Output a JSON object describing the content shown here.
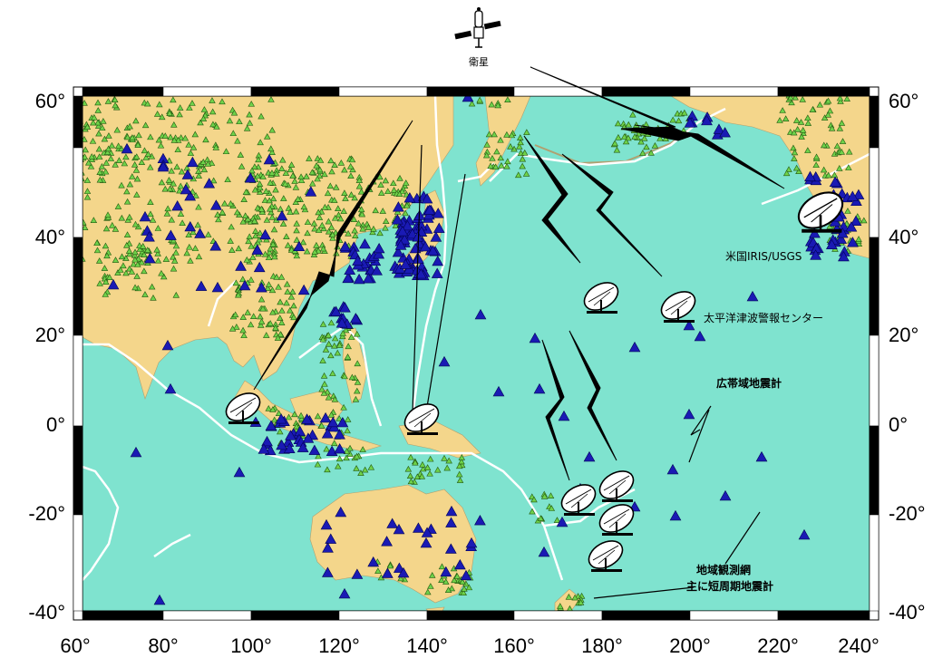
{
  "axes": {
    "x_ticks": [
      "60°",
      "80°",
      "100°",
      "120°",
      "140°",
      "160°",
      "180°",
      "200°",
      "220°",
      "240°"
    ],
    "y_ticks": [
      "60°",
      "40°",
      "20°",
      "0°",
      "-20°",
      "-40°"
    ]
  },
  "labels": {
    "satellite": "衛星",
    "iris": "米国IRIS/USGS",
    "ptwc": "太平洋津波警報センター",
    "broadband": "広帯域地震計",
    "regional_line1": "地域観測網",
    "regional_line2": "主に短周期地震計"
  },
  "colors": {
    "ocean": "#7fe3cf",
    "land": "#f4d68b",
    "plate_boundary": "#ffffff",
    "broadband_station": "#1a1ab4",
    "regional_station": "#6fd24a",
    "frame": "#000000"
  },
  "icons": [
    "satellite-icon",
    "dish-antenna-icon",
    "lightning-bolt-icon"
  ]
}
